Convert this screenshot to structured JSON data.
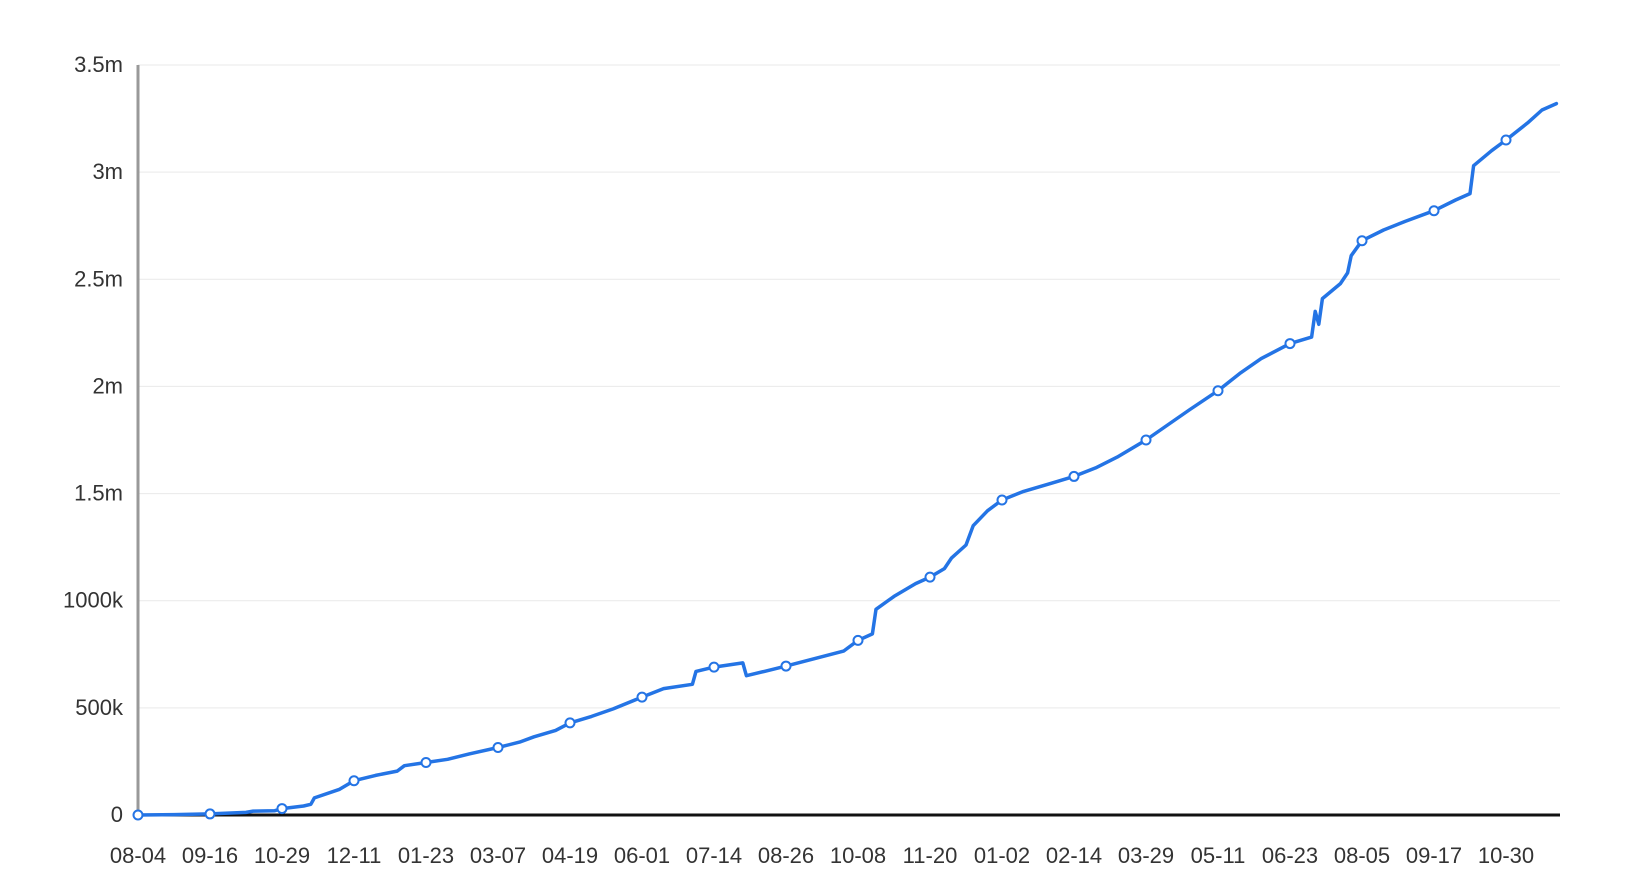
{
  "colors": {
    "line": "#2474e5",
    "grid": "#e9e9e9",
    "y_axis": "#999999",
    "x_axis": "#111111",
    "marker_fill": "#ffffff",
    "text": "#333333"
  },
  "chart_data": {
    "type": "line",
    "title": "",
    "xlabel": "",
    "ylabel": "",
    "grid": true,
    "legend": "none",
    "x_tick_labels": [
      "08-04",
      "09-16",
      "10-29",
      "12-11",
      "01-23",
      "03-07",
      "04-19",
      "06-01",
      "07-14",
      "08-26",
      "10-08",
      "11-20",
      "01-02",
      "02-14",
      "03-29",
      "05-11",
      "06-23",
      "08-05",
      "09-17",
      "10-30"
    ],
    "y_ticks": [
      {
        "value": 0,
        "label": "0"
      },
      {
        "value": 500000,
        "label": "500k"
      },
      {
        "value": 1000000,
        "label": "1000k"
      },
      {
        "value": 1500000,
        "label": "1.5m"
      },
      {
        "value": 2000000,
        "label": "2m"
      },
      {
        "value": 2500000,
        "label": "2.5m"
      },
      {
        "value": 3000000,
        "label": "3m"
      },
      {
        "value": 3500000,
        "label": "3.5m"
      }
    ],
    "ylim": [
      0,
      3500000
    ],
    "xlim": [
      0,
      19.7
    ],
    "series": [
      {
        "points": [
          [
            0,
            0
          ],
          [
            0.5,
            2000
          ],
          [
            1,
            5000
          ],
          [
            1.5,
            12000
          ],
          [
            1.6,
            18000
          ],
          [
            1.9,
            20000
          ],
          [
            2.0,
            30000
          ],
          [
            2.3,
            42000
          ],
          [
            2.4,
            50000
          ],
          [
            2.45,
            80000
          ],
          [
            2.8,
            120000
          ],
          [
            3.0,
            160000
          ],
          [
            3.3,
            185000
          ],
          [
            3.6,
            205000
          ],
          [
            3.7,
            230000
          ],
          [
            4.0,
            245000
          ],
          [
            4.3,
            260000
          ],
          [
            4.6,
            285000
          ],
          [
            5.0,
            315000
          ],
          [
            5.3,
            340000
          ],
          [
            5.5,
            365000
          ],
          [
            5.8,
            395000
          ],
          [
            6.0,
            430000
          ],
          [
            6.3,
            460000
          ],
          [
            6.6,
            495000
          ],
          [
            7.0,
            550000
          ],
          [
            7.3,
            590000
          ],
          [
            7.7,
            610000
          ],
          [
            7.75,
            670000
          ],
          [
            8.0,
            690000
          ],
          [
            8.4,
            710000
          ],
          [
            8.45,
            650000
          ],
          [
            8.7,
            670000
          ],
          [
            9.0,
            695000
          ],
          [
            9.4,
            730000
          ],
          [
            9.8,
            765000
          ],
          [
            10.0,
            815000
          ],
          [
            10.2,
            845000
          ],
          [
            10.25,
            960000
          ],
          [
            10.5,
            1020000
          ],
          [
            10.8,
            1080000
          ],
          [
            11.0,
            1110000
          ],
          [
            11.2,
            1150000
          ],
          [
            11.3,
            1200000
          ],
          [
            11.5,
            1260000
          ],
          [
            11.6,
            1350000
          ],
          [
            11.8,
            1420000
          ],
          [
            12.0,
            1470000
          ],
          [
            12.3,
            1510000
          ],
          [
            12.7,
            1550000
          ],
          [
            13.0,
            1580000
          ],
          [
            13.3,
            1620000
          ],
          [
            13.6,
            1670000
          ],
          [
            14.0,
            1750000
          ],
          [
            14.3,
            1820000
          ],
          [
            14.6,
            1890000
          ],
          [
            15.0,
            1980000
          ],
          [
            15.3,
            2060000
          ],
          [
            15.6,
            2130000
          ],
          [
            16.0,
            2200000
          ],
          [
            16.3,
            2230000
          ],
          [
            16.35,
            2350000
          ],
          [
            16.4,
            2290000
          ],
          [
            16.45,
            2410000
          ],
          [
            16.7,
            2480000
          ],
          [
            16.8,
            2530000
          ],
          [
            16.85,
            2610000
          ],
          [
            17.0,
            2680000
          ],
          [
            17.3,
            2730000
          ],
          [
            17.6,
            2770000
          ],
          [
            18.0,
            2820000
          ],
          [
            18.3,
            2870000
          ],
          [
            18.5,
            2900000
          ],
          [
            18.55,
            3030000
          ],
          [
            18.8,
            3100000
          ],
          [
            19.0,
            3150000
          ],
          [
            19.3,
            3230000
          ],
          [
            19.5,
            3290000
          ],
          [
            19.7,
            3320000
          ]
        ],
        "markers": [
          [
            0,
            0
          ],
          [
            1,
            5000
          ],
          [
            2.0,
            30000
          ],
          [
            3.0,
            160000
          ],
          [
            4.0,
            245000
          ],
          [
            5.0,
            315000
          ],
          [
            6.0,
            430000
          ],
          [
            7.0,
            550000
          ],
          [
            8.0,
            690000
          ],
          [
            9.0,
            695000
          ],
          [
            10.0,
            815000
          ],
          [
            11.0,
            1110000
          ],
          [
            12.0,
            1470000
          ],
          [
            13.0,
            1580000
          ],
          [
            14.0,
            1750000
          ],
          [
            15.0,
            1980000
          ],
          [
            16.0,
            2200000
          ],
          [
            17.0,
            2680000
          ],
          [
            18.0,
            2820000
          ],
          [
            19.0,
            3150000
          ]
        ]
      }
    ]
  }
}
